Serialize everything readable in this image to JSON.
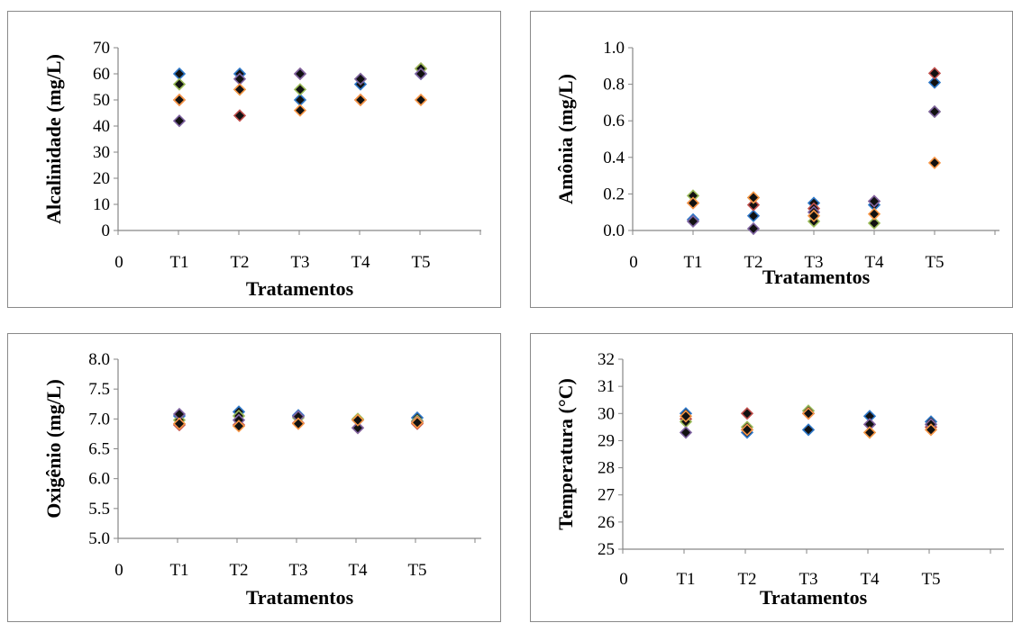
{
  "chart_data": [
    {
      "type": "scatter",
      "xlabel": "Tratamentos",
      "ylabel": "Alcalinidade (mg/L)",
      "x_tick_labels": [
        "0",
        "T1",
        "T2",
        "T3",
        "T4",
        "T5"
      ],
      "y_tick_labels": [
        "0",
        "10",
        "20",
        "30",
        "40",
        "50",
        "60",
        "70"
      ],
      "ylim": [
        0,
        70
      ],
      "grid": false,
      "categories": [
        "T1",
        "T2",
        "T3",
        "T4",
        "T5"
      ],
      "series": [
        {
          "color": "#2f78c8",
          "values": [
            60,
            60,
            50,
            56,
            60
          ]
        },
        {
          "color": "#c0504d",
          "values": [
            50,
            44,
            60,
            50,
            62
          ]
        },
        {
          "color": "#9bbb59",
          "values": [
            56,
            54,
            54,
            58,
            62
          ]
        },
        {
          "color": "#8064a2",
          "values": [
            42,
            58,
            60,
            58,
            60
          ]
        },
        {
          "color": "#f79646",
          "values": [
            50,
            54,
            46,
            50,
            50
          ]
        }
      ]
    },
    {
      "type": "scatter",
      "xlabel": "Tratamentos",
      "ylabel": "Amônia (mg/L)",
      "x_tick_labels": [
        "0",
        "T1",
        "T2",
        "T3",
        "T4",
        "T5"
      ],
      "y_tick_labels": [
        "0.0",
        "0.2",
        "0.4",
        "0.6",
        "0.8",
        "1.0"
      ],
      "ylim": [
        0,
        1.0
      ],
      "grid": false,
      "categories": [
        "T1",
        "T2",
        "T3",
        "T4",
        "T5"
      ],
      "series": [
        {
          "color": "#2f78c8",
          "values": [
            0.06,
            0.08,
            0.15,
            0.14,
            0.81
          ]
        },
        {
          "color": "#c0504d",
          "values": [
            0.15,
            0.14,
            0.12,
            0.16,
            0.86
          ]
        },
        {
          "color": "#9bbb59",
          "values": [
            0.19,
            0.18,
            0.05,
            0.04,
            0.65
          ]
        },
        {
          "color": "#8064a2",
          "values": [
            0.05,
            0.01,
            0.1,
            0.16,
            0.65
          ]
        },
        {
          "color": "#f79646",
          "values": [
            0.15,
            0.18,
            0.08,
            0.09,
            0.37
          ]
        }
      ]
    },
    {
      "type": "scatter",
      "xlabel": "Tratamentos",
      "ylabel": "Oxigênio (mg/L)",
      "x_tick_labels": [
        "0",
        "T1",
        "T2",
        "T3",
        "T4",
        "T5"
      ],
      "y_tick_labels": [
        "5.0",
        "5.5",
        "6.0",
        "6.5",
        "7.0",
        "7.5",
        "8.0"
      ],
      "ylim": [
        5.0,
        8.0
      ],
      "grid": false,
      "categories": [
        "T1",
        "T2",
        "T3",
        "T4",
        "T5"
      ],
      "series": [
        {
          "color": "#2f78c8",
          "values": [
            7.05,
            7.12,
            7.06,
            6.98,
            7.02
          ]
        },
        {
          "color": "#c0504d",
          "values": [
            6.9,
            6.9,
            6.93,
            6.85,
            6.92
          ]
        },
        {
          "color": "#9bbb59",
          "values": [
            6.98,
            7.05,
            7.02,
            7.0,
            6.97
          ]
        },
        {
          "color": "#8064a2",
          "values": [
            7.08,
            6.98,
            7.04,
            6.85,
            6.95
          ]
        },
        {
          "color": "#f79646",
          "values": [
            6.92,
            6.88,
            6.92,
            6.98,
            6.94
          ]
        }
      ]
    },
    {
      "type": "scatter",
      "xlabel": "Tratamentos",
      "ylabel": "Temperatura (°C)",
      "x_tick_labels": [
        "0",
        "T1",
        "T2",
        "T3",
        "T4",
        "T5"
      ],
      "y_tick_labels": [
        "25",
        "26",
        "27",
        "28",
        "29",
        "30",
        "31",
        "32"
      ],
      "ylim": [
        25,
        32
      ],
      "grid": false,
      "categories": [
        "T1",
        "T2",
        "T3",
        "T4",
        "T5"
      ],
      "series": [
        {
          "color": "#2f78c8",
          "values": [
            30.0,
            29.3,
            29.4,
            29.9,
            29.7
          ]
        },
        {
          "color": "#c0504d",
          "values": [
            29.8,
            30.0,
            30.0,
            29.6,
            29.5
          ]
        },
        {
          "color": "#9bbb59",
          "values": [
            29.7,
            29.5,
            30.1,
            29.3,
            29.6
          ]
        },
        {
          "color": "#8064a2",
          "values": [
            29.3,
            29.4,
            30.0,
            29.6,
            29.6
          ]
        },
        {
          "color": "#f79646",
          "values": [
            29.9,
            29.4,
            30.0,
            29.3,
            29.4
          ]
        }
      ]
    }
  ]
}
